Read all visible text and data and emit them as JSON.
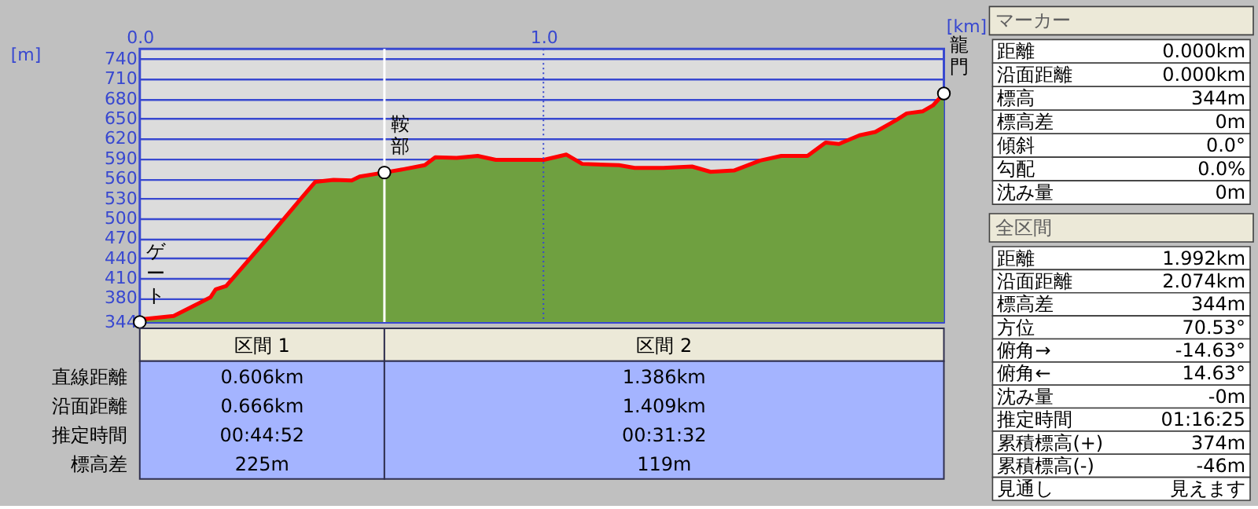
{
  "chart_data": [
    {
      "type": "area",
      "xlabel": "[km]",
      "ylabel": "[m]",
      "x": [
        0,
        0.004,
        0.084,
        0.136,
        0.175,
        0.188,
        0.214,
        0.318,
        0.415,
        0.435,
        0.48,
        0.525,
        0.545,
        0.606,
        0.654,
        0.706,
        0.732,
        0.785,
        0.837,
        0.882,
        0.953,
        1.001,
        1.057,
        1.096,
        1.187,
        1.226,
        1.297,
        1.368,
        1.414,
        1.472,
        1.537,
        1.589,
        1.654,
        1.699,
        1.732,
        1.783,
        1.822,
        1.874,
        1.9,
        1.939,
        1.965,
        1.992
      ],
      "series": [
        {
          "color": "#6fa040",
          "values": [
            344,
            348,
            353,
            369,
            381,
            393,
            398,
            471,
            541,
            555,
            558,
            557,
            563,
            569,
            574,
            580,
            592,
            591,
            594,
            588,
            588,
            588,
            596,
            582,
            580,
            576,
            576,
            578,
            570,
            572,
            587,
            594,
            594,
            614,
            612,
            625,
            630,
            648,
            658,
            661,
            670,
            688
          ]
        }
      ],
      "xlim": [
        0,
        1.992
      ],
      "ylim": [
        344,
        755
      ],
      "xticks": [
        {
          "value": 0,
          "label": "0.0"
        },
        {
          "value": 1,
          "label": "1.0"
        }
      ],
      "yticks": [
        344,
        380,
        410,
        440,
        470,
        500,
        530,
        560,
        590,
        620,
        650,
        680,
        710,
        740
      ],
      "grid": "y",
      "ref_lines": [
        {
          "axis": "x",
          "value": 0.606,
          "color": "#ffffff"
        },
        {
          "axis": "x",
          "value": 1,
          "color": "#3848d0",
          "line_style": "dotted"
        }
      ],
      "annotations": [
        {
          "text": "ゲート",
          "x": 0,
          "y": 344
        },
        {
          "text": "鞍部",
          "x": 0.606,
          "y": 569
        },
        {
          "text": "龍門",
          "x": 1.992,
          "y": 688
        }
      ]
    },
    {
      "type": "other",
      "annotations": [
        "区間 1",
        "区間 2",
        "直線距離",
        "0.606km",
        "1.386km",
        "沿面距離",
        "0.666km",
        "1.409km",
        "推定時間",
        "00:44:52",
        "00:31:32",
        "標高差",
        "225m",
        "119m"
      ]
    },
    {
      "type": "other",
      "title": "マーカー",
      "annotations": [
        "距離",
        "0.000km",
        "沿面距離",
        "0.000km",
        "標高",
        "344m",
        "標高差",
        "0m",
        "傾斜",
        "0.0°",
        "勾配",
        "0.0%",
        "沈み量",
        "0m"
      ]
    },
    {
      "type": "other",
      "title": "全区間",
      "annotations": [
        "距離",
        "1.992km",
        "沿面距離",
        "2.074km",
        "標高差",
        "344m",
        "方位",
        "70.53°",
        "俯角→",
        "-14.63°",
        "俯角←",
        "14.63°",
        "沈み量",
        "-0m",
        "推定時間",
        "01:16:25",
        "累積標高(+)",
        "374m",
        "累積標高(-)",
        "-46m",
        "見通し",
        "見えます"
      ]
    }
  ]
}
